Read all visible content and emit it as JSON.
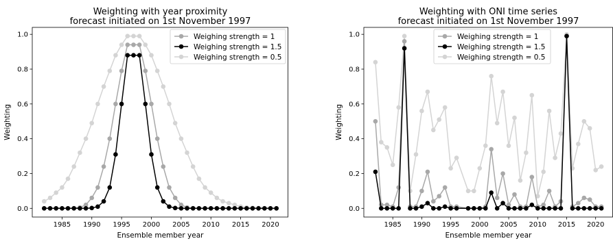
{
  "chart_data": [
    {
      "type": "line",
      "title": "Weighting with year proximity",
      "subtitle": "forecast initiated on 1st November 1997",
      "xlabel": "Ensemble member year",
      "ylabel": "Weighting",
      "xlim": [
        1980,
        2023
      ],
      "ylim": [
        -0.05,
        1.04
      ],
      "xticks": [
        1985,
        1990,
        1995,
        2000,
        2005,
        2010,
        2015,
        2020
      ],
      "yticks": [
        0.0,
        0.2,
        0.4,
        0.6,
        0.8,
        1.0
      ],
      "legend": "top-right",
      "x": [
        1982,
        1983,
        1984,
        1985,
        1986,
        1987,
        1988,
        1989,
        1990,
        1991,
        1992,
        1993,
        1994,
        1995,
        1996,
        1997,
        1998,
        1999,
        2000,
        2001,
        2002,
        2003,
        2004,
        2005,
        2006,
        2007,
        2008,
        2009,
        2010,
        2011,
        2012,
        2013,
        2014,
        2015,
        2016,
        2017,
        2018,
        2019,
        2020,
        2021
      ],
      "series": [
        {
          "name": "Weighing strength = 1",
          "color": "#a8a8a8",
          "values": [
            0,
            0,
            0,
            0,
            0,
            0.001,
            0.005,
            0.02,
            0.06,
            0.12,
            0.24,
            0.4,
            0.6,
            0.79,
            0.94,
            0.94,
            0.94,
            0.79,
            0.6,
            0.4,
            0.24,
            0.12,
            0.06,
            0.02,
            0.005,
            0.001,
            0,
            0,
            0,
            0,
            0,
            0,
            0,
            0,
            0,
            0,
            0,
            0,
            0,
            0
          ]
        },
        {
          "name": "Weighing strength = 1.5",
          "color": "#000000",
          "values": [
            0,
            0,
            0,
            0,
            0,
            0,
            0,
            0,
            0.002,
            0.01,
            0.04,
            0.12,
            0.31,
            0.6,
            0.88,
            0.88,
            0.88,
            0.6,
            0.31,
            0.12,
            0.04,
            0.01,
            0.002,
            0,
            0,
            0,
            0,
            0,
            0,
            0,
            0,
            0,
            0,
            0,
            0,
            0,
            0,
            0,
            0,
            0
          ]
        },
        {
          "name": "Weighing strength = 0.5",
          "color": "#d4d4d4",
          "values": [
            0.04,
            0.06,
            0.09,
            0.12,
            0.17,
            0.24,
            0.32,
            0.4,
            0.49,
            0.6,
            0.7,
            0.79,
            0.88,
            0.94,
            0.99,
            0.99,
            0.99,
            0.94,
            0.88,
            0.79,
            0.7,
            0.6,
            0.49,
            0.4,
            0.32,
            0.24,
            0.17,
            0.12,
            0.09,
            0.06,
            0.04,
            0.03,
            0.02,
            0.01,
            0.005,
            0.003,
            0.002,
            0.001,
            0,
            0
          ]
        }
      ]
    },
    {
      "type": "line",
      "title": "Weighting with ONI time series",
      "subtitle": "forecast initiated on 1st November 1997",
      "xlabel": "Ensemble member year",
      "ylabel": "Weighting",
      "xlim": [
        1980,
        2023
      ],
      "ylim": [
        -0.05,
        1.04
      ],
      "xticks": [
        1985,
        1990,
        1995,
        2000,
        2005,
        2010,
        2015,
        2020
      ],
      "yticks": [
        0.0,
        0.2,
        0.4,
        0.6,
        0.8,
        1.0
      ],
      "legend": "top-center",
      "x": [
        1982,
        1983,
        1984,
        1985,
        1986,
        1987,
        1988,
        1989,
        1990,
        1991,
        1992,
        1993,
        1994,
        1995,
        1996,
        1998,
        1999,
        2000,
        2001,
        2002,
        2003,
        2004,
        2005,
        2006,
        2007,
        2008,
        2009,
        2010,
        2011,
        2012,
        2013,
        2014,
        2015,
        2016,
        2017,
        2018,
        2019,
        2020,
        2021
      ],
      "series": [
        {
          "name": "Weighing strength = 1",
          "color": "#a8a8a8",
          "values": [
            0.5,
            0.02,
            0.02,
            0.01,
            0.12,
            0.96,
            0.01,
            0.01,
            0.1,
            0.21,
            0.04,
            0.07,
            0.12,
            0.01,
            0.01,
            0,
            0,
            0,
            0.01,
            0.34,
            0.06,
            0.2,
            0.02,
            0.08,
            0.01,
            0.01,
            0.18,
            0.01,
            0.02,
            0.1,
            0.01,
            0.04,
            0.99,
            0.01,
            0.03,
            0.06,
            0.05,
            0.01,
            0.01
          ]
        },
        {
          "name": "Weighing strength = 1.5",
          "color": "#000000",
          "values": [
            0.21,
            0,
            0,
            0,
            0,
            0.92,
            0,
            0,
            0.01,
            0.03,
            0,
            0,
            0.01,
            0,
            0,
            0,
            0,
            0,
            0,
            0.09,
            0,
            0.03,
            0,
            0,
            0,
            0,
            0.02,
            0,
            0,
            0,
            0,
            0,
            0.99,
            0,
            0,
            0,
            0,
            0,
            0
          ]
        },
        {
          "name": "Weighing strength = 0.5",
          "color": "#d4d4d4",
          "values": [
            0.84,
            0.38,
            0.35,
            0.25,
            0.58,
            0.99,
            0.1,
            0.31,
            0.56,
            0.67,
            0.45,
            0.51,
            0.58,
            0.23,
            0.29,
            0.1,
            0.1,
            0.23,
            0.36,
            0.76,
            0.49,
            0.67,
            0.36,
            0.52,
            0.16,
            0.32,
            0.65,
            0.07,
            0.21,
            0.56,
            0.29,
            0.43,
            1.0,
            0.23,
            0.37,
            0.5,
            0.46,
            0.22,
            0.24
          ]
        }
      ]
    }
  ]
}
